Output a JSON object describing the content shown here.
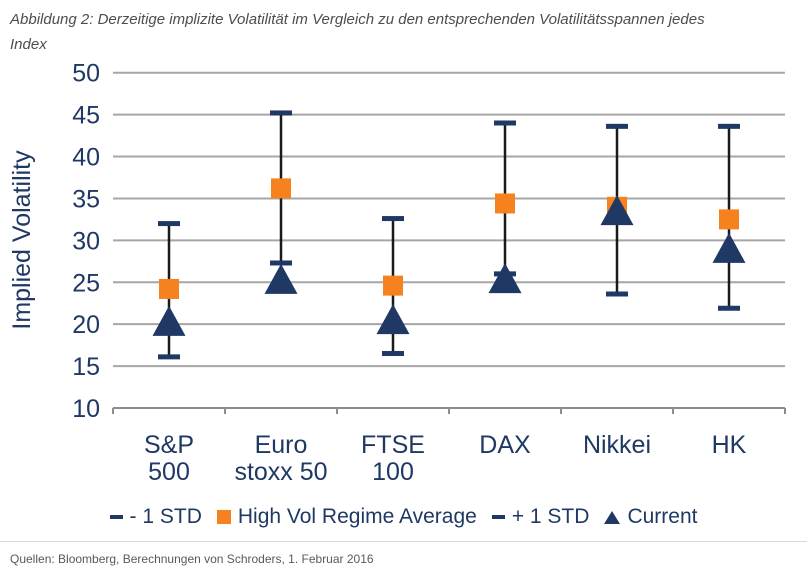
{
  "caption": {
    "line1": "Abbildung 2: Derzeitige implizite Volatilität im Vergleich zu den entsprechenden Volatilitätsspannen jedes",
    "line2": "Index"
  },
  "footer": "Quellen: Bloomberg, Berechnungen von Schroders, 1. Februar 2016",
  "chart_data": {
    "type": "error-bar",
    "title": "",
    "xlabel": "",
    "ylabel": "Implied Volatility",
    "ylim": [
      10,
      50
    ],
    "ytick_step": 5,
    "grid": true,
    "legend_position": "bottom",
    "categories": [
      "S&P 500",
      "Euro stoxx 50",
      "FTSE 100",
      "DAX",
      "Nikkei",
      "HK"
    ],
    "category_labels": [
      [
        "S&P",
        "500"
      ],
      [
        "Euro",
        "stoxx 50"
      ],
      [
        "FTSE",
        "100"
      ],
      [
        "DAX"
      ],
      [
        "Nikkei"
      ],
      [
        "HK"
      ]
    ],
    "series": [
      {
        "name": "- 1 STD",
        "marker": "dash",
        "values": [
          16.1,
          27.3,
          16.5,
          26.0,
          23.6,
          21.9
        ]
      },
      {
        "name": "High Vol Regime Average",
        "marker": "square",
        "values": [
          24.2,
          36.2,
          24.6,
          34.4,
          34.0,
          32.5
        ]
      },
      {
        "name": "+ 1 STD",
        "marker": "dash",
        "values": [
          32.0,
          45.2,
          32.6,
          44.0,
          43.6,
          43.6
        ]
      },
      {
        "name": "Current",
        "marker": "triangle",
        "values": [
          20.4,
          25.4,
          20.6,
          25.5,
          33.6,
          29.1
        ]
      }
    ]
  },
  "colors": {
    "navy": "#1F3864",
    "orange": "#F5821F",
    "hilo_line": "#1a1a1a",
    "grid": "#a6a6a6",
    "axis": "#8c8c8c",
    "caption_gray": "#4d4d4d",
    "footer_gray": "#595959",
    "divider": "#d9d9d9"
  }
}
